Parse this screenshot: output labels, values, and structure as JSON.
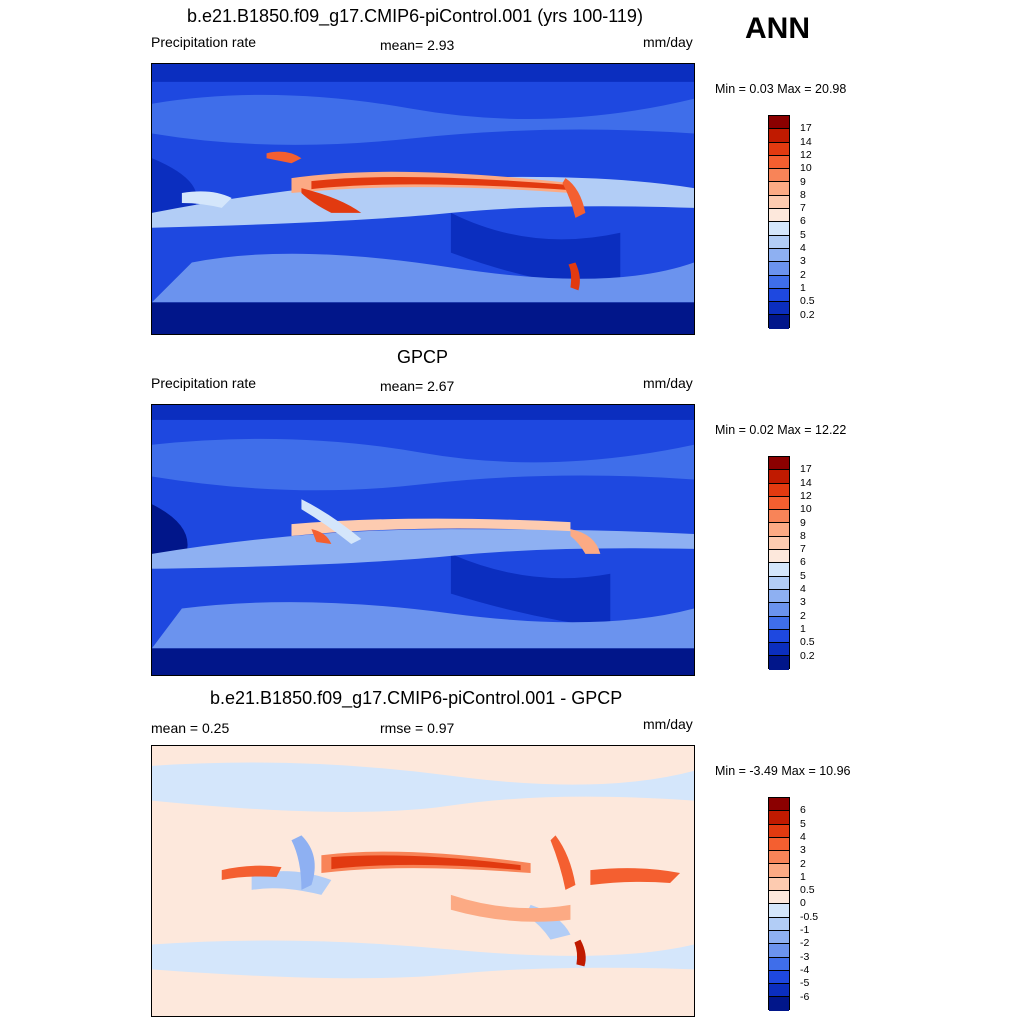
{
  "season": "ANN",
  "units": "mm/day",
  "panels": [
    {
      "title": "b.e21.B1850.f09_g17.CMIP6-piControl.001 (yrs 100-119)",
      "left_label": "Precipitation rate",
      "center_label": "mean=   2.93",
      "min_max": "Min =   0.03 Max =  20.98",
      "scale": "abs"
    },
    {
      "title": "GPCP",
      "left_label": "Precipitation rate",
      "center_label": "mean=   2.67",
      "min_max": "Min =   0.02 Max =  12.22",
      "scale": "abs"
    },
    {
      "title": "b.e21.B1850.f09_g17.CMIP6-piControl.001 - GPCP",
      "left_label": "mean =   0.25",
      "center_label": "rmse =   0.97",
      "min_max": "Min =  -3.49 Max =  10.96",
      "scale": "diff"
    }
  ],
  "colorbars": {
    "abs": {
      "labels": [
        "17",
        "14",
        "12",
        "10",
        "9",
        "8",
        "7",
        "6",
        "5",
        "4",
        "3",
        "2",
        "1",
        "0.5",
        "0.2"
      ],
      "colors": [
        "#8b0000",
        "#c01a00",
        "#e23a10",
        "#f45f30",
        "#f88458",
        "#fcaa84",
        "#fdcbb0",
        "#fde8dc",
        "#d4e6fb",
        "#b2cdf6",
        "#8eb0f2",
        "#6b93ee",
        "#3f6eea",
        "#1e48e0",
        "#0b2ebf",
        "#01168a"
      ]
    },
    "diff": {
      "labels": [
        "6",
        "5",
        "4",
        "3",
        "2",
        "1",
        "0.5",
        "0",
        "-0.5",
        "-1",
        "-2",
        "-3",
        "-4",
        "-5",
        "-6"
      ],
      "colors": [
        "#8b0000",
        "#c01a00",
        "#e23a10",
        "#f45f30",
        "#f88458",
        "#fcaa84",
        "#fdcbb0",
        "#fde8dc",
        "#d4e6fb",
        "#b2cdf6",
        "#8eb0f2",
        "#6b93ee",
        "#3f6eea",
        "#1e48e0",
        "#0b2ebf",
        "#01168a"
      ]
    }
  }
}
